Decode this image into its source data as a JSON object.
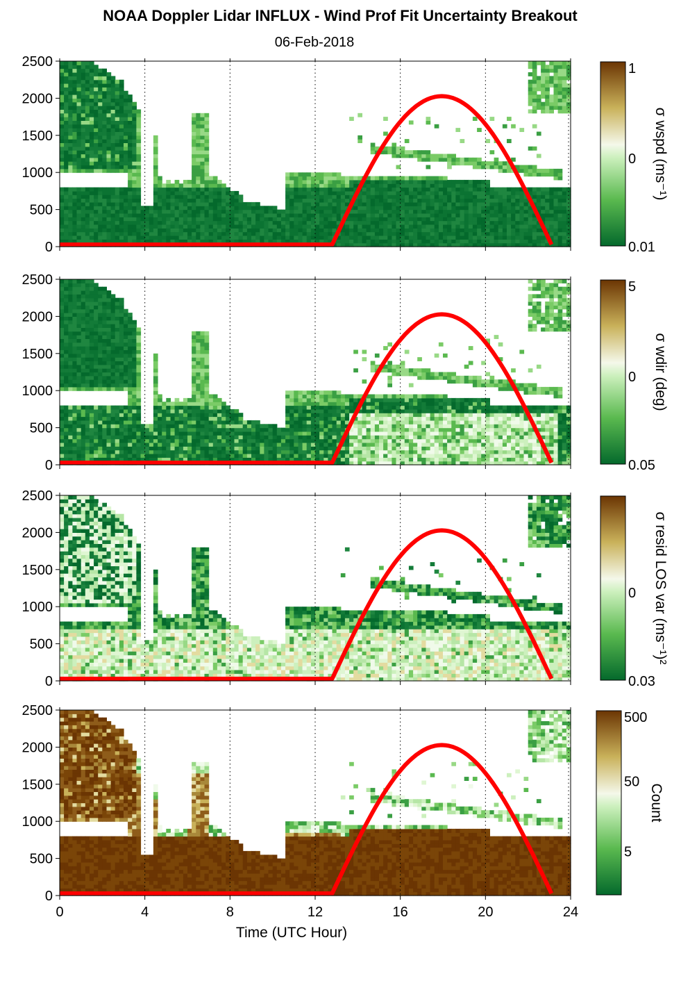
{
  "title": "NOAA Doppler Lidar INFLUX - Wind Prof Fit Uncertainty Breakout",
  "subtitle": "06-Feb-2018",
  "colors": {
    "dark_green": "#04692c",
    "mid_green": "#5ab94f",
    "light_green": "#ccf0bd",
    "near_white": "#f4f8ea",
    "tan": "#c9b15a",
    "dark_brown": "#6b3503",
    "solar_curve": "#ff0000"
  },
  "chart_data": [
    {
      "type": "heatmap",
      "name": "sigma-wspd",
      "xlabel": "",
      "ylabel": "",
      "xlim": [
        0,
        24
      ],
      "ylim": [
        0,
        2500
      ],
      "xticks": [
        0,
        4,
        8,
        12,
        16,
        20,
        24
      ],
      "yticks": [
        0,
        500,
        1000,
        1500,
        2000,
        2500
      ],
      "colorbar": {
        "label": "σ wspd (ms⁻¹)",
        "ticks": [
          "1",
          "0",
          "0.01"
        ],
        "scale": "log"
      },
      "solar_elevation_curve": {
        "start_hour": 12.8,
        "peak_hour": 18.0,
        "end_hour": 23.1,
        "peak_height": 2000
      },
      "grid": "dotted vertical at 4-hour ticks"
    },
    {
      "type": "heatmap",
      "name": "sigma-wdir",
      "xlabel": "",
      "ylabel": "",
      "xlim": [
        0,
        24
      ],
      "ylim": [
        0,
        2500
      ],
      "xticks": [
        0,
        4,
        8,
        12,
        16,
        20,
        24
      ],
      "yticks": [
        0,
        500,
        1000,
        1500,
        2000,
        2500
      ],
      "colorbar": {
        "label": "σ wdir (deg)",
        "ticks": [
          "5",
          "0",
          "0.05"
        ],
        "scale": "log"
      },
      "solar_elevation_curve": {
        "start_hour": 12.8,
        "peak_hour": 18.0,
        "end_hour": 23.1,
        "peak_height": 2000
      },
      "grid": "dotted vertical at 4-hour ticks"
    },
    {
      "type": "heatmap",
      "name": "sigma-resid-los-var",
      "xlabel": "",
      "ylabel": "",
      "xlim": [
        0,
        24
      ],
      "ylim": [
        0,
        2500
      ],
      "xticks": [
        0,
        4,
        8,
        12,
        16,
        20,
        24
      ],
      "yticks": [
        0,
        500,
        1000,
        1500,
        2000,
        2500
      ],
      "colorbar": {
        "label": "σ resid LOS var (ms⁻¹)²",
        "ticks": [
          "",
          "0",
          "0.03"
        ],
        "scale": "log"
      },
      "solar_elevation_curve": {
        "start_hour": 12.8,
        "peak_hour": 18.0,
        "end_hour": 23.1,
        "peak_height": 2000
      },
      "grid": "dotted vertical at 4-hour ticks"
    },
    {
      "type": "heatmap",
      "name": "count",
      "xlabel": "Time (UTC Hour)",
      "ylabel": "",
      "xlim": [
        0,
        24
      ],
      "ylim": [
        0,
        2500
      ],
      "xticks": [
        0,
        4,
        8,
        12,
        16,
        20,
        24
      ],
      "yticks": [
        0,
        500,
        1000,
        1500,
        2000,
        2500
      ],
      "colorbar": {
        "label": "Count",
        "ticks": [
          "500",
          "50",
          "5"
        ],
        "scale": "log"
      },
      "solar_elevation_curve": {
        "start_hour": 12.8,
        "peak_hour": 18.0,
        "end_hour": 23.1,
        "peak_height": 2000
      },
      "grid": "dotted vertical at 4-hour ticks"
    }
  ]
}
